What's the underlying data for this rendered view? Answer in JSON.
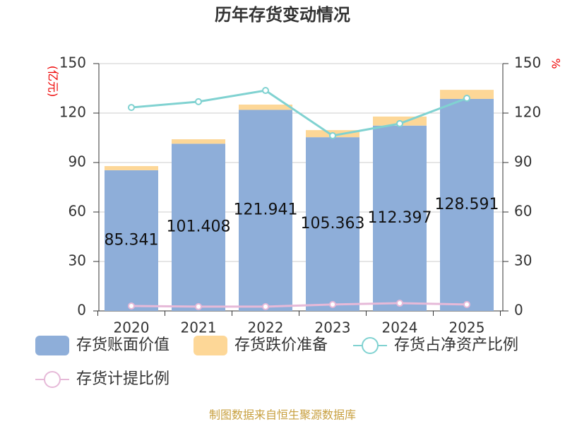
{
  "chart_data": {
    "type": "bar",
    "stacked": true,
    "title": "历年存货变动情况",
    "y_label": "(亿元)",
    "y2_label": "%",
    "source": "制图数据来自恒生聚源数据库",
    "categories": [
      "2020",
      "2021",
      "2022",
      "2023",
      "2024",
      "2025"
    ],
    "series": [
      {
        "name": "存货账面价值",
        "color": "#8eaed9",
        "values": [
          85.341,
          101.408,
          121.941,
          105.363,
          112.397,
          128.591
        ],
        "show_labels": true
      },
      {
        "name": "存货跌价准备",
        "color": "#fdd797",
        "values": [
          2.5,
          2.7,
          3.2,
          4.3,
          5.5,
          5.5
        ]
      },
      {
        "name": "存货占净资产比例",
        "type": "line",
        "axis": "y2",
        "color": "#80d2d1",
        "values": [
          123.4,
          126.9,
          133.7,
          106.3,
          113.6,
          129.0
        ]
      },
      {
        "name": "存货计提比例",
        "type": "line",
        "axis": "y2",
        "color": "#e6b9d8",
        "values": [
          3.0,
          2.6,
          2.6,
          3.9,
          4.7,
          3.9
        ]
      }
    ],
    "ylim": [
      0,
      150
    ],
    "yticks": [
      0,
      30,
      60,
      90,
      120,
      150
    ],
    "y2lim": [
      0,
      150
    ],
    "y2ticks": [
      0,
      30,
      60,
      90,
      120,
      150
    ],
    "grid": true
  }
}
